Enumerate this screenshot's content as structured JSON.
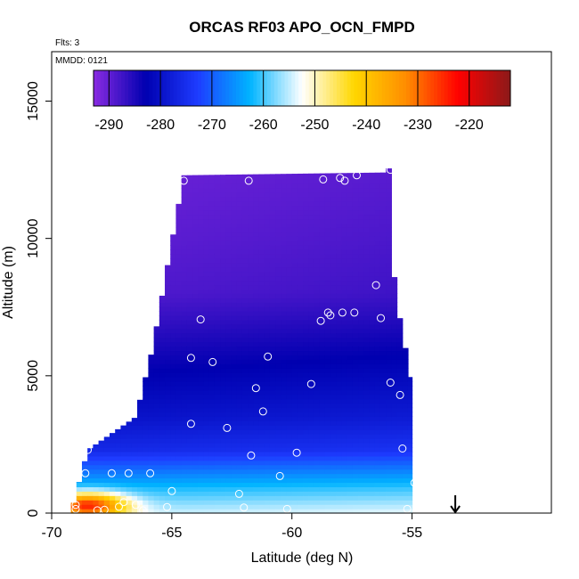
{
  "chart_data": {
    "type": "heatmap",
    "title": "ORCAS RF03 APO_OCN_FMPD",
    "annotations": {
      "flights": "Flts: 3",
      "mmdd": "MMDD: 0121"
    },
    "xlabel": "Latitude (deg N)",
    "ylabel": "Altitude (m)",
    "xlim": [
      -70,
      -49.2
    ],
    "ylim": [
      0,
      16800
    ],
    "x_ticks": [
      -70,
      -65,
      -60,
      -55
    ],
    "x_tick_labels": [
      "-70",
      "-65",
      "-60",
      "-55"
    ],
    "y_ticks": [
      0,
      5000,
      10000,
      15000
    ],
    "y_tick_labels": [
      "0",
      "5000",
      "10000",
      "15000"
    ],
    "grid": false,
    "colorbar": {
      "placement": "top-inside",
      "range": [
        -293,
        -212
      ],
      "ticks": [
        -290,
        -280,
        -270,
        -260,
        -250,
        -240,
        -230,
        -220
      ],
      "tick_labels": [
        "-290",
        "-280",
        "-270",
        "-260",
        "-250",
        "-240",
        "-230",
        "-220"
      ],
      "colors": [
        "#8a2be2",
        "#0000b0",
        "#1e3cff",
        "#00b4ff",
        "#ffffff",
        "#ffd700",
        "#ff8c00",
        "#ff0000",
        "#8b1a1a"
      ]
    },
    "field_extent": {
      "lat_min": -69.2,
      "lat_max": -55,
      "top_edge": [
        [
          -69.2,
          0
        ],
        [
          -68.5,
          2300
        ],
        [
          -66.5,
          3500
        ],
        [
          -65.8,
          6000
        ],
        [
          -64.5,
          12300
        ],
        [
          -56.2,
          12400
        ],
        [
          -55.9,
          12600
        ],
        [
          -55.9,
          9600
        ],
        [
          -55.5,
          7000
        ],
        [
          -55,
          4700
        ],
        [
          -55,
          0
        ]
      ]
    },
    "value_profile": [
      {
        "alt": 0,
        "value": -255
      },
      {
        "alt": 400,
        "value": -258
      },
      {
        "alt": 900,
        "value": -262
      },
      {
        "alt": 1500,
        "value": -268
      },
      {
        "alt": 2300,
        "value": -276
      },
      {
        "alt": 3500,
        "value": -280
      },
      {
        "alt": 5000,
        "value": -283
      },
      {
        "alt": 6500,
        "value": -286
      },
      {
        "alt": 8000,
        "value": -289
      },
      {
        "alt": 10000,
        "value": -290
      },
      {
        "alt": 12500,
        "value": -291
      }
    ],
    "hot_spot": {
      "lat": -68.5,
      "alt": 300,
      "value": -225
    },
    "samples": [
      [
        -69,
        300
      ],
      [
        -69,
        150
      ],
      [
        -68.6,
        1450
      ],
      [
        -68.1,
        100
      ],
      [
        -67.8,
        120
      ],
      [
        -67.5,
        1450
      ],
      [
        -67.2,
        230
      ],
      [
        -67,
        400
      ],
      [
        -66.8,
        1450
      ],
      [
        -66.5,
        300
      ],
      [
        -66.2,
        100
      ],
      [
        -65.9,
        1450
      ],
      [
        -65,
        800
      ],
      [
        -65.2,
        220
      ],
      [
        -64.2,
        3250
      ],
      [
        -62.7,
        3100
      ],
      [
        -62.2,
        700
      ],
      [
        -62,
        200
      ],
      [
        -61.7,
        2100
      ],
      [
        -61.2,
        3700
      ],
      [
        -60.5,
        1350
      ],
      [
        -60.2,
        150
      ],
      [
        -59.8,
        2200
      ],
      [
        -61.5,
        4550
      ],
      [
        -59.2,
        4700
      ],
      [
        -61,
        5700
      ],
      [
        -63.3,
        5500
      ],
      [
        -64.2,
        5650
      ],
      [
        -63.8,
        7050
      ],
      [
        -58.8,
        7000
      ],
      [
        -58.5,
        7300
      ],
      [
        -58.4,
        7200
      ],
      [
        -57.9,
        7300
      ],
      [
        -57.4,
        7300
      ],
      [
        -56.5,
        8300
      ],
      [
        -56.3,
        7100
      ],
      [
        -55.9,
        4750
      ],
      [
        -55.5,
        4300
      ],
      [
        -55.4,
        2350
      ],
      [
        -55.2,
        150
      ],
      [
        -54.9,
        1100
      ],
      [
        -68.5,
        2300
      ],
      [
        -64.5,
        12100
      ],
      [
        -61.8,
        12100
      ],
      [
        -58.7,
        12150
      ],
      [
        -58,
        12200
      ],
      [
        -57.8,
        12100
      ],
      [
        -57.3,
        12300
      ],
      [
        -55.9,
        12500
      ]
    ],
    "marker": {
      "lat": -53.2,
      "label": ""
    }
  }
}
